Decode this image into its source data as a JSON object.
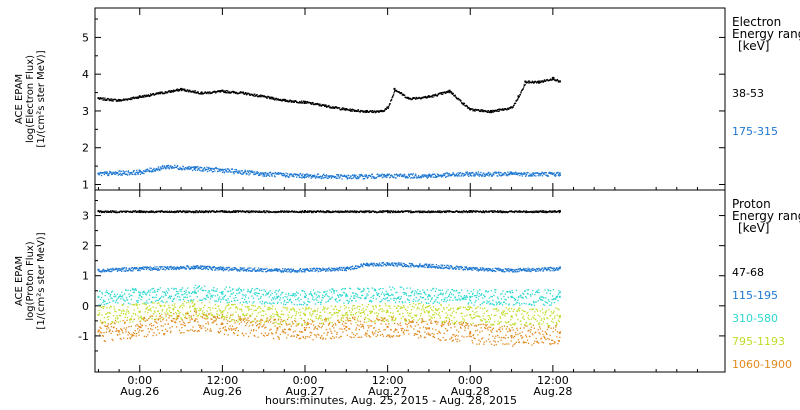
{
  "xaxis": {
    "caption": "hours:minutes, Aug. 25, 2015 - Aug. 28, 2015",
    "range_hours": [
      -6.5,
      85
    ],
    "ticks": [
      {
        "h": 0,
        "time": "0:00",
        "date": "Aug.26"
      },
      {
        "h": 12,
        "time": "12:00",
        "date": "Aug.26"
      },
      {
        "h": 24,
        "time": "0:00",
        "date": "Aug.27"
      },
      {
        "h": 36,
        "time": "12:00",
        "date": "Aug.27"
      },
      {
        "h": 48,
        "time": "0:00",
        "date": "Aug.28"
      },
      {
        "h": 60,
        "time": "12:00",
        "date": "Aug.28"
      }
    ]
  },
  "chart_data": [
    {
      "type": "scatter",
      "panel": "electron",
      "ylabel": [
        "ACE EPAM",
        "log(Electron Flux)",
        "[1/(cm²s ster MeV)]"
      ],
      "ylim": [
        0.85,
        5.8
      ],
      "yticks": [
        1,
        2,
        3,
        4,
        5
      ],
      "legend": {
        "title": [
          "Electron",
          "Energy ranges",
          "[keV]"
        ],
        "placement": "right"
      },
      "series": [
        {
          "name": "38-53",
          "color": "#000000",
          "x": [
            -6,
            -3,
            0,
            3,
            6,
            9,
            12,
            15,
            18,
            21,
            24,
            27,
            30,
            33,
            35,
            36,
            37,
            39,
            42,
            45,
            47,
            48,
            51,
            54,
            55,
            56,
            58,
            60,
            61
          ],
          "y": [
            3.35,
            3.3,
            3.4,
            3.5,
            3.6,
            3.5,
            3.55,
            3.5,
            3.4,
            3.3,
            3.25,
            3.15,
            3.05,
            3.0,
            3.0,
            3.1,
            3.6,
            3.35,
            3.4,
            3.55,
            3.2,
            3.05,
            3.0,
            3.1,
            3.4,
            3.8,
            3.8,
            3.9,
            3.8
          ]
        },
        {
          "name": "175-315",
          "color": "#1e78d2",
          "x": [
            -6,
            0,
            4,
            8,
            12,
            18,
            24,
            30,
            36,
            42,
            48,
            54,
            61
          ],
          "y": [
            1.3,
            1.35,
            1.5,
            1.45,
            1.4,
            1.3,
            1.25,
            1.22,
            1.25,
            1.25,
            1.3,
            1.3,
            1.3
          ]
        }
      ]
    },
    {
      "type": "scatter",
      "panel": "proton",
      "ylabel": [
        "ACE EPAM",
        "log(Proton Flux)",
        "[1/(cm²s ster MeV)]"
      ],
      "ylim": [
        -2.2,
        3.85
      ],
      "yticks": [
        -1,
        0,
        1,
        2,
        3
      ],
      "legend": {
        "title": [
          "Proton",
          "Energy ranges",
          "[keV]"
        ],
        "placement": "right"
      },
      "series": [
        {
          "name": "47-68",
          "color": "#000000",
          "x": [
            -6,
            0,
            12,
            24,
            36,
            48,
            61
          ],
          "y": [
            3.15,
            3.15,
            3.15,
            3.15,
            3.15,
            3.15,
            3.15
          ]
        },
        {
          "name": "115-195",
          "color": "#1e78d2",
          "x": [
            -6,
            0,
            8,
            12,
            20,
            24,
            30,
            33,
            36,
            42,
            48,
            54,
            61
          ],
          "y": [
            1.2,
            1.25,
            1.3,
            1.25,
            1.2,
            1.2,
            1.25,
            1.4,
            1.4,
            1.35,
            1.25,
            1.2,
            1.25
          ]
        },
        {
          "name": "310-580",
          "color": "#2ed8d0",
          "x": [
            -6,
            0,
            8,
            12,
            20,
            24,
            30,
            36,
            42,
            48,
            54,
            61
          ],
          "y": [
            0.3,
            0.35,
            0.45,
            0.4,
            0.3,
            0.3,
            0.35,
            0.4,
            0.35,
            0.3,
            0.3,
            0.3
          ]
        },
        {
          "name": "795-1193",
          "color": "#c0dc2a",
          "x": [
            -6,
            0,
            8,
            12,
            20,
            24,
            30,
            36,
            42,
            48,
            54,
            61
          ],
          "y": [
            -0.3,
            -0.2,
            -0.1,
            -0.2,
            -0.3,
            -0.3,
            -0.25,
            -0.2,
            -0.2,
            -0.3,
            -0.35,
            -0.35
          ]
        },
        {
          "name": "1060-1900",
          "color": "#e08a1e",
          "x": [
            -6,
            0,
            8,
            12,
            20,
            24,
            30,
            36,
            42,
            48,
            54,
            61
          ],
          "y": [
            -0.85,
            -0.7,
            -0.5,
            -0.6,
            -0.75,
            -0.8,
            -0.7,
            -0.7,
            -0.75,
            -0.9,
            -1.0,
            -0.9
          ]
        }
      ]
    }
  ]
}
